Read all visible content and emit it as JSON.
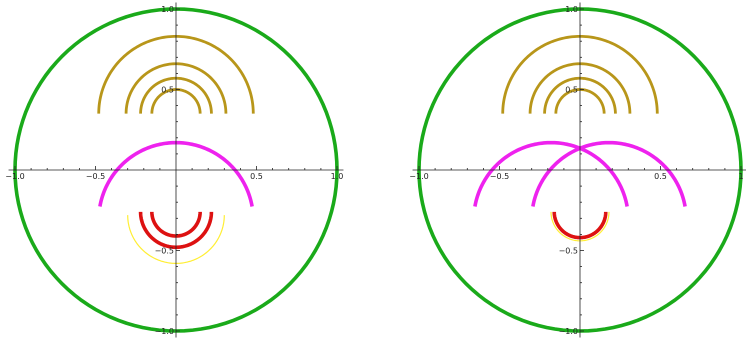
{
  "chart_data": [
    {
      "type": "line",
      "subtype": "parametric-curves",
      "aspect_ratio": "equal",
      "xlim": [
        -1.0,
        1.0
      ],
      "ylim": [
        -1.0,
        1.0
      ],
      "x_ticks": [
        -1.0,
        -0.5,
        0.5,
        1.0
      ],
      "x_tick_labels": [
        "-1.0",
        "-0.5",
        "0.5",
        "1.0"
      ],
      "y_ticks": [
        -1.0,
        -0.5,
        0.5,
        1.0
      ],
      "y_tick_labels": [
        "-1.0",
        "-0.5",
        "0.5",
        "1.0"
      ],
      "grid": false,
      "series": [
        {
          "color": "#1aaa1a",
          "kind": "circle",
          "center": [
            0,
            0
          ],
          "radius": 1.0,
          "weight": "thick"
        },
        {
          "color": "#b8961a",
          "kind": "upper-semicircle",
          "center": [
            0,
            0.35
          ],
          "radius": 0.48,
          "weight": "medium"
        },
        {
          "color": "#b8961a",
          "kind": "upper-semicircle",
          "center": [
            0,
            0.35
          ],
          "radius": 0.31,
          "weight": "medium"
        },
        {
          "color": "#b8961a",
          "kind": "upper-semicircle",
          "center": [
            0,
            0.35
          ],
          "radius": 0.22,
          "weight": "medium"
        },
        {
          "color": "#b8961a",
          "kind": "upper-semicircle",
          "center": [
            0,
            0.35
          ],
          "radius": 0.15,
          "weight": "medium"
        },
        {
          "color": "#ee22ee",
          "kind": "upper-arc",
          "center": [
            0,
            -0.31
          ],
          "radius": 0.48,
          "start_deg": 10,
          "end_deg": 170,
          "weight": "thick"
        },
        {
          "color": "#ffee33",
          "kind": "lower-semicircle",
          "center": [
            0,
            -0.28
          ],
          "radius": 0.3,
          "weight": "thin"
        },
        {
          "color": "#dd1111",
          "kind": "lower-semicircle",
          "center": [
            0,
            -0.26
          ],
          "radius": 0.22,
          "weight": "thick"
        },
        {
          "color": "#dd1111",
          "kind": "lower-semicircle",
          "center": [
            0,
            -0.26
          ],
          "radius": 0.15,
          "weight": "thick"
        }
      ]
    },
    {
      "type": "line",
      "subtype": "parametric-curves",
      "aspect_ratio": "equal",
      "xlim": [
        -1.0,
        1.0
      ],
      "ylim": [
        -1.0,
        1.0
      ],
      "x_ticks": [
        -1.0,
        -0.5,
        0.5,
        1.0
      ],
      "x_tick_labels": [
        "-1.0",
        "-0.5",
        "0.5",
        "1"
      ],
      "y_ticks": [
        -1.0,
        -0.5,
        0.5,
        1.0
      ],
      "y_tick_labels": [
        "-1.0",
        "-0.5",
        "0.5",
        "1.0"
      ],
      "grid": false,
      "series": [
        {
          "color": "#1aaa1a",
          "kind": "circle",
          "center": [
            0,
            0
          ],
          "radius": 1.0,
          "weight": "thick"
        },
        {
          "color": "#b8961a",
          "kind": "upper-semicircle",
          "center": [
            0,
            0.35
          ],
          "radius": 0.48,
          "weight": "medium"
        },
        {
          "color": "#b8961a",
          "kind": "upper-semicircle",
          "center": [
            0,
            0.35
          ],
          "radius": 0.31,
          "weight": "medium"
        },
        {
          "color": "#b8961a",
          "kind": "upper-semicircle",
          "center": [
            0,
            0.35
          ],
          "radius": 0.22,
          "weight": "medium"
        },
        {
          "color": "#b8961a",
          "kind": "upper-semicircle",
          "center": [
            0,
            0.35
          ],
          "radius": 0.15,
          "weight": "medium"
        },
        {
          "color": "#ee22ee",
          "kind": "upper-arc",
          "center": [
            -0.18,
            -0.31
          ],
          "radius": 0.48,
          "start_deg": 10,
          "end_deg": 170,
          "weight": "thick"
        },
        {
          "color": "#ee22ee",
          "kind": "upper-arc",
          "center": [
            0.18,
            -0.31
          ],
          "radius": 0.48,
          "start_deg": 10,
          "end_deg": 170,
          "weight": "thick"
        },
        {
          "color": "#ffee33",
          "kind": "lower-semicircle",
          "center": [
            0,
            -0.26
          ],
          "radius": 0.18,
          "weight": "thin"
        },
        {
          "color": "#dd1111",
          "kind": "lower-semicircle",
          "center": [
            0,
            -0.26
          ],
          "radius": 0.16,
          "weight": "thick"
        }
      ]
    }
  ]
}
